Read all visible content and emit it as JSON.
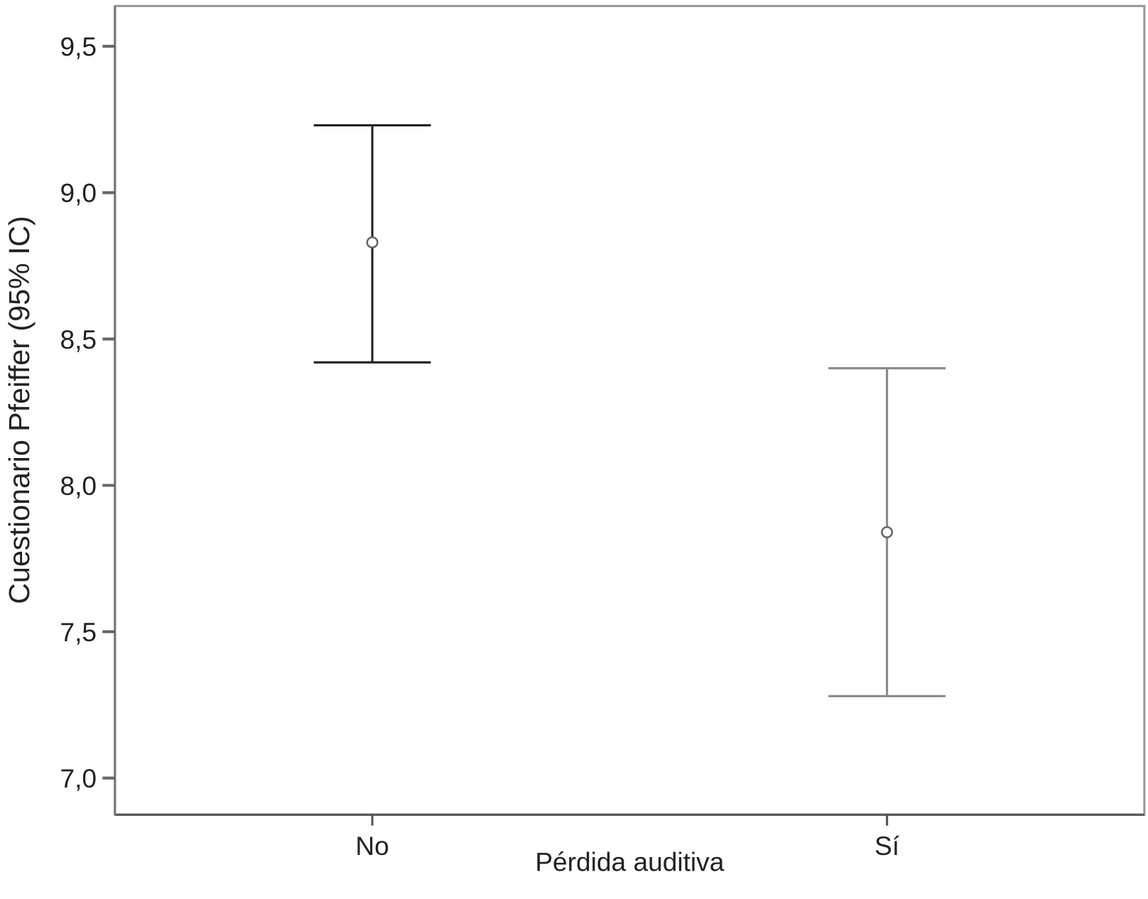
{
  "chart_data": {
    "type": "errorbar",
    "title": "",
    "xlabel": "Pérdida auditiva",
    "ylabel": "Cuestionario Pfeiffer (95% IC)",
    "categories": [
      "No",
      "Sí"
    ],
    "ylim": [
      6.875,
      9.6375
    ],
    "yticks": [
      7.0,
      7.5,
      8.0,
      8.5,
      9.0,
      9.5
    ],
    "ytick_labels": [
      "7,0",
      "7,5",
      "8,0",
      "8,5",
      "9,0",
      "9,5"
    ],
    "grid": false,
    "series": [
      {
        "category": "No",
        "mean": 8.83,
        "lower": 8.42,
        "upper": 9.23,
        "color": "#222222"
      },
      {
        "category": "Sí",
        "mean": 7.84,
        "lower": 7.28,
        "upper": 8.4,
        "color": "#8a8a8a"
      }
    ],
    "colors": {
      "frame": "#9a9a9a",
      "axis": "#555555"
    }
  }
}
